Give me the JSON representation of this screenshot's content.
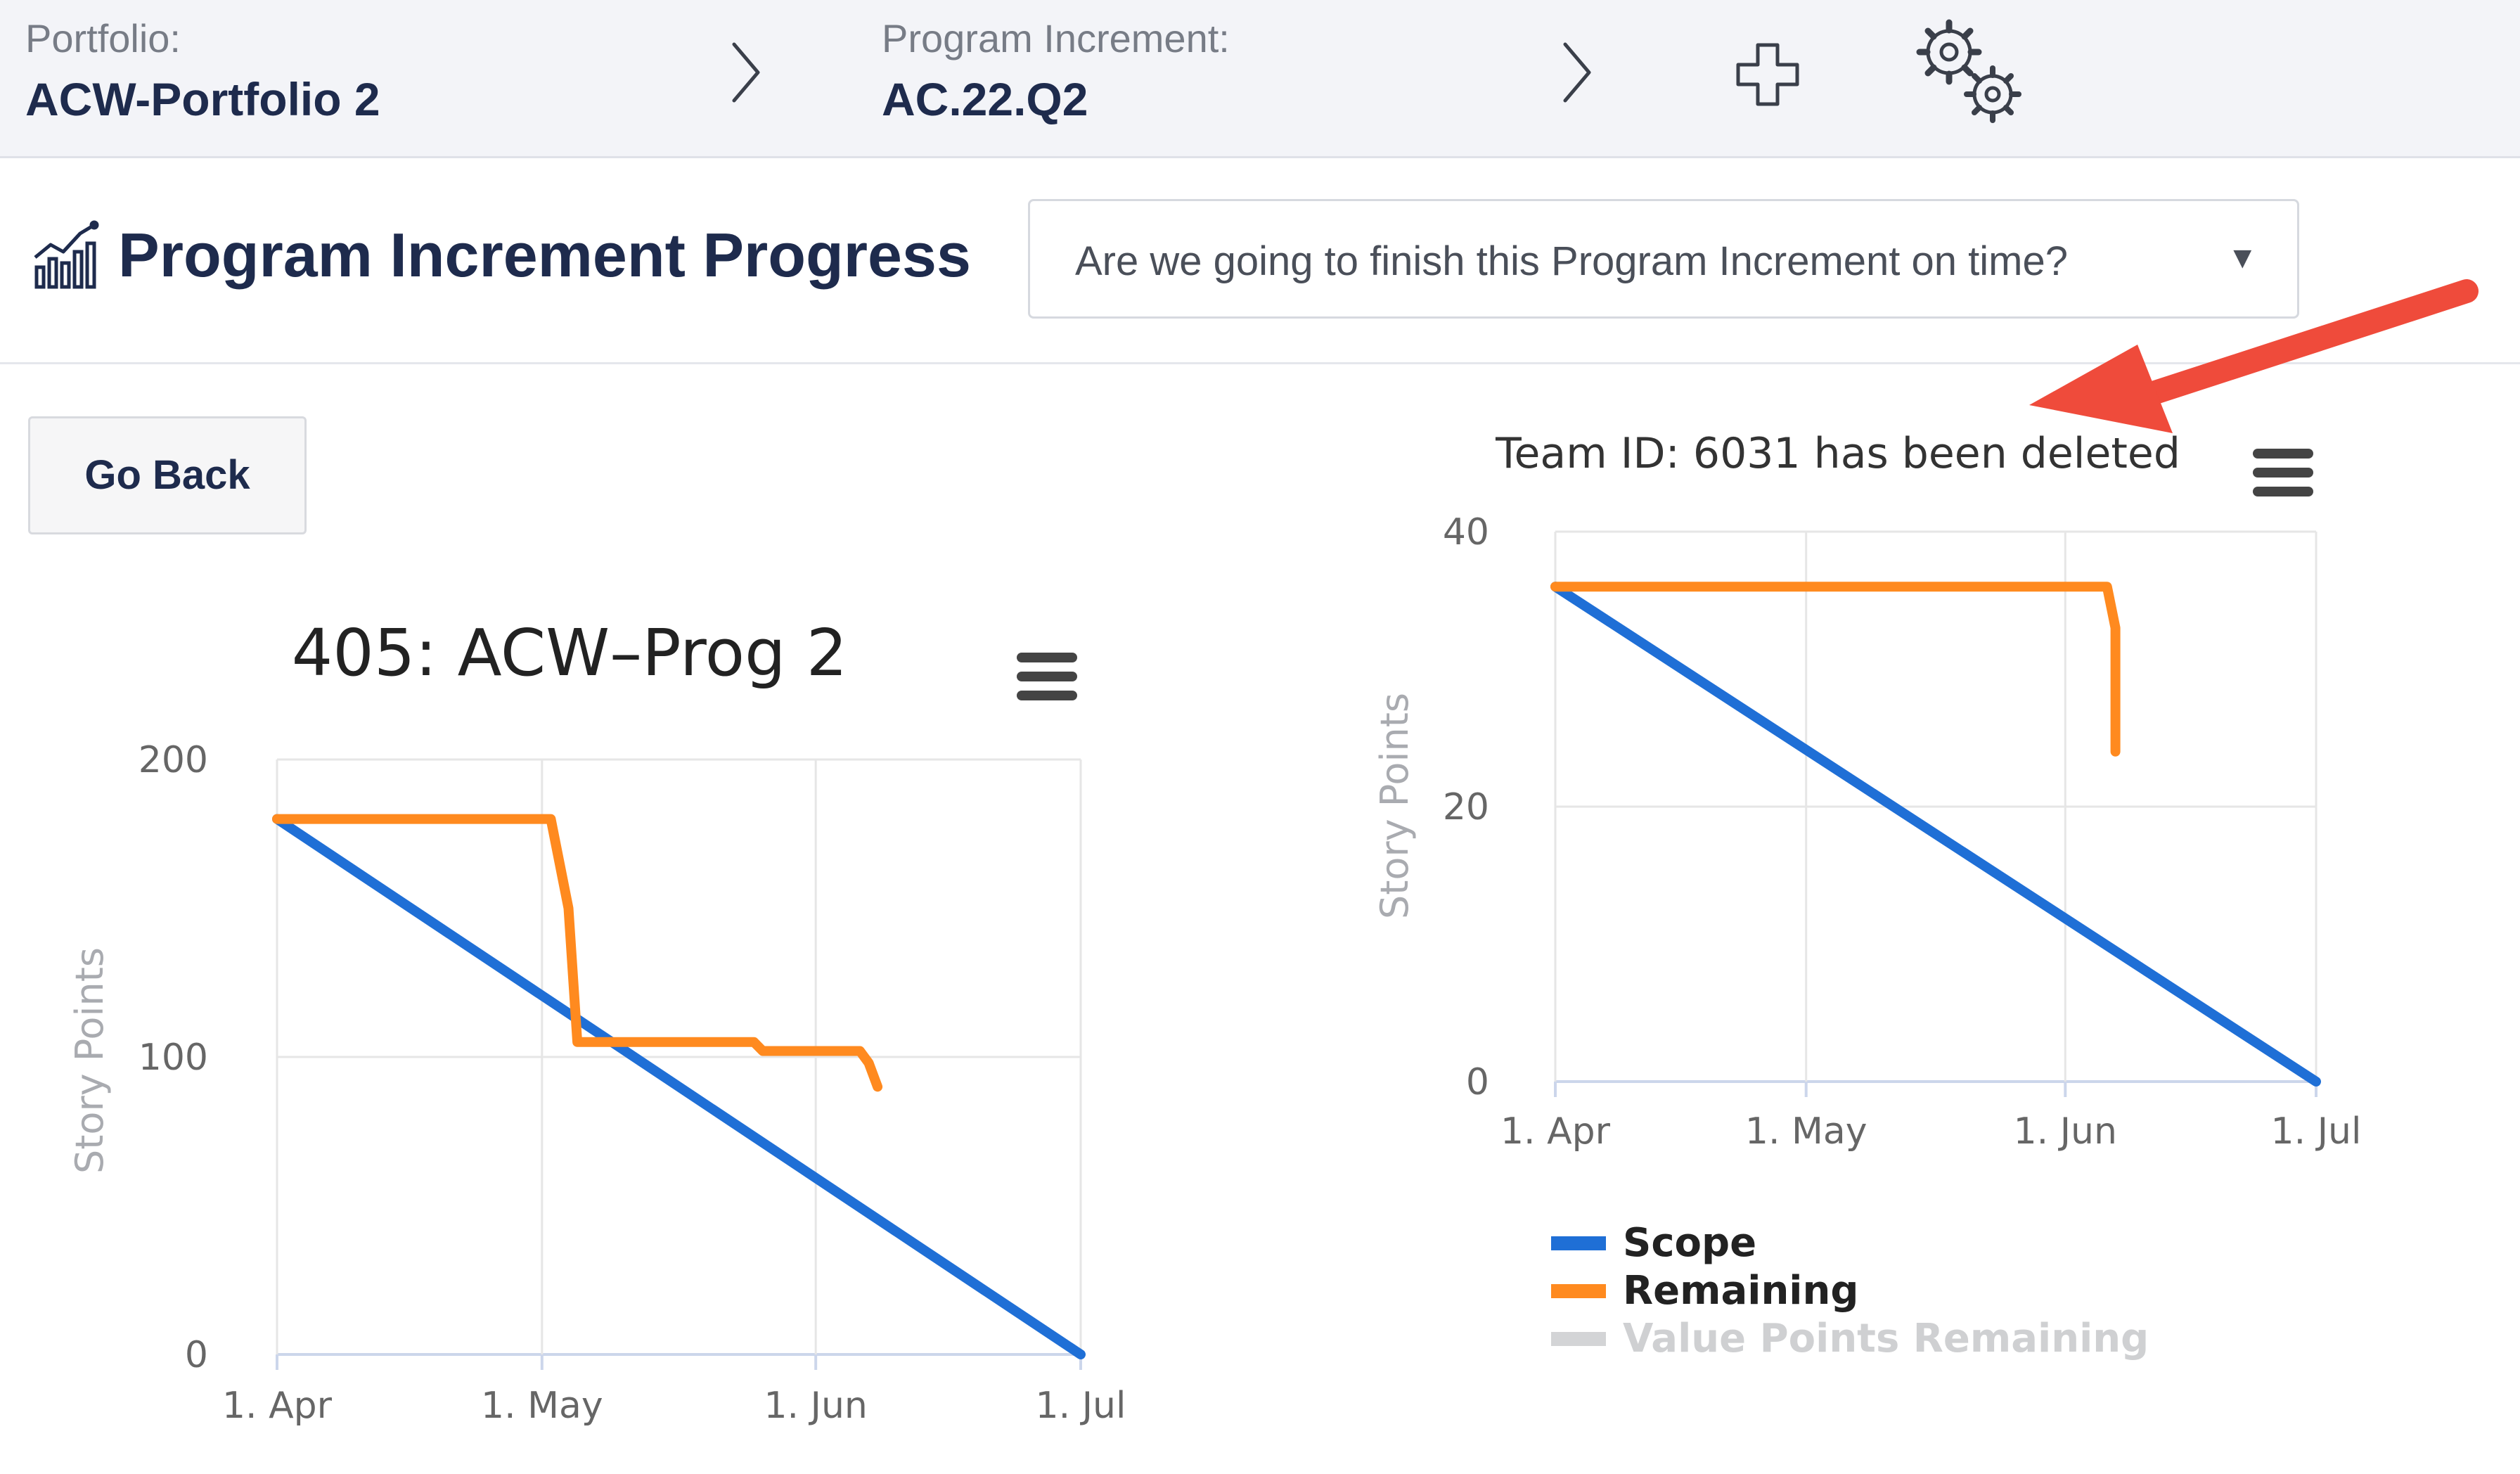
{
  "breadcrumbs": {
    "portfolio_label": "Portfolio:",
    "portfolio_value": "ACW-Portfolio 2",
    "pi_label": "Program Increment:",
    "pi_value": "AC.22.Q2"
  },
  "page": {
    "title": "Program Increment Progress",
    "question_select": "Are we going to finish this Program Increment on time?",
    "go_back_label": "Go Back"
  },
  "colors": {
    "scope": "#1f6fd6",
    "remaining": "#ff8a1f",
    "value_points": "#d3d4d6",
    "arrow": "#ef4b3b"
  },
  "icons": [
    "chevron-right-icon",
    "plus-icon",
    "gears-icon",
    "chart-icon",
    "hamburger-menu-icon",
    "red-arrow-annotation"
  ],
  "chart_data": [
    {
      "type": "line",
      "title": "405: ACW–Prog 2",
      "ylabel": "Story Points",
      "xlabel": "",
      "ylim": [
        0,
        200
      ],
      "yticks": [
        0,
        100,
        200
      ],
      "xlim": [
        "2022-04-01",
        "2022-07-01"
      ],
      "xticks": [
        {
          "date": "2022-04-01",
          "label": "1. Apr"
        },
        {
          "date": "2022-05-01",
          "label": "1. May"
        },
        {
          "date": "2022-06-01",
          "label": "1. Jun"
        },
        {
          "date": "2022-07-01",
          "label": "1. Jul"
        }
      ],
      "series": [
        {
          "name": "Scope",
          "color": "#1f6fd6",
          "points": [
            [
              "2022-04-01",
              180
            ],
            [
              "2022-07-01",
              0
            ]
          ]
        },
        {
          "name": "Remaining",
          "color": "#ff8a1f",
          "points": [
            [
              "2022-04-01",
              180
            ],
            [
              "2022-05-02",
              180
            ],
            [
              "2022-05-04",
              150
            ],
            [
              "2022-05-05",
              105
            ],
            [
              "2022-05-25",
              105
            ],
            [
              "2022-05-26",
              102
            ],
            [
              "2022-06-06",
              102
            ],
            [
              "2022-06-07",
              98
            ],
            [
              "2022-06-08",
              90
            ]
          ]
        }
      ]
    },
    {
      "type": "line",
      "title": "Team ID: 6031 has been deleted",
      "ylabel": "Story Points",
      "xlabel": "",
      "ylim": [
        0,
        40
      ],
      "yticks": [
        0,
        20,
        40
      ],
      "xlim": [
        "2022-04-01",
        "2022-07-01"
      ],
      "xticks": [
        {
          "date": "2022-04-01",
          "label": "1. Apr"
        },
        {
          "date": "2022-05-01",
          "label": "1. May"
        },
        {
          "date": "2022-06-01",
          "label": "1. Jun"
        },
        {
          "date": "2022-07-01",
          "label": "1. Jul"
        }
      ],
      "series": [
        {
          "name": "Scope",
          "color": "#1f6fd6",
          "points": [
            [
              "2022-04-01",
              36
            ],
            [
              "2022-07-01",
              0
            ]
          ]
        },
        {
          "name": "Remaining",
          "color": "#ff8a1f",
          "points": [
            [
              "2022-04-01",
              36
            ],
            [
              "2022-06-06",
              36
            ],
            [
              "2022-06-07",
              33
            ],
            [
              "2022-06-07",
              24
            ]
          ]
        }
      ],
      "legend": {
        "placement": "bottom-left",
        "items": [
          {
            "name": "Scope",
            "color": "#1f6fd6",
            "enabled": true
          },
          {
            "name": "Remaining",
            "color": "#ff8a1f",
            "enabled": true
          },
          {
            "name": "Value Points Remaining",
            "color": "#d3d4d6",
            "enabled": false
          }
        ]
      }
    }
  ]
}
